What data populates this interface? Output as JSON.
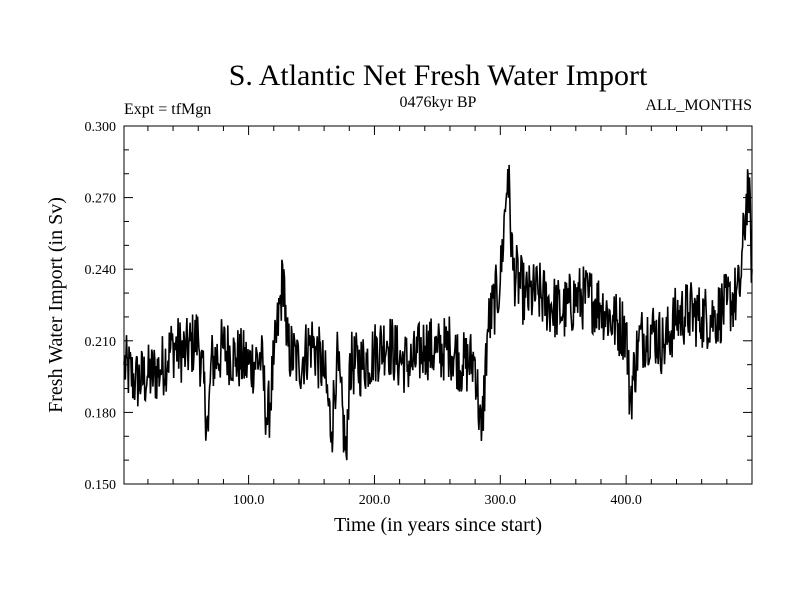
{
  "chart_data": {
    "type": "line",
    "title": "S. Atlantic Net Fresh Water Import",
    "subtitle_left": "Expt = tfMgn",
    "subtitle_center": "0476kyr BP",
    "subtitle_right": "ALL_MONTHS",
    "xlabel": "Time (in years since start)",
    "ylabel": "Fresh Water Import (in Sv)",
    "xlim": [
      1,
      500
    ],
    "ylim": [
      0.15,
      0.3
    ],
    "x_ticks": [
      100,
      200,
      300,
      400
    ],
    "x_tick_labels": [
      "100.0",
      "200.0",
      "300.0",
      "400.0"
    ],
    "y_ticks": [
      0.15,
      0.18,
      0.21,
      0.24,
      0.27,
      0.3
    ],
    "y_tick_labels": [
      "0.150",
      "0.180",
      "0.210",
      "0.240",
      "0.270",
      "0.300"
    ],
    "line_color": "#000000",
    "grid": false,
    "series": [
      {
        "x": [
          1,
          10,
          20,
          30,
          40,
          50,
          60,
          68,
          70,
          80,
          90,
          100,
          110,
          115,
          120,
          128,
          130,
          140,
          150,
          160,
          166,
          170,
          178,
          180,
          190,
          200,
          210,
          220,
          230,
          240,
          250,
          260,
          270,
          280,
          285,
          290,
          300,
          306,
          310,
          320,
          330,
          340,
          350,
          360,
          370,
          380,
          390,
          400,
          403,
          410,
          420,
          430,
          440,
          450,
          460,
          470,
          480,
          490,
          497,
          500
        ],
        "values": [
          0.2,
          0.193,
          0.195,
          0.198,
          0.208,
          0.205,
          0.212,
          0.172,
          0.2,
          0.207,
          0.203,
          0.2,
          0.203,
          0.175,
          0.2,
          0.24,
          0.208,
          0.2,
          0.21,
          0.197,
          0.172,
          0.203,
          0.16,
          0.2,
          0.2,
          0.205,
          0.21,
          0.202,
          0.2,
          0.208,
          0.205,
          0.208,
          0.2,
          0.202,
          0.168,
          0.215,
          0.235,
          0.282,
          0.24,
          0.228,
          0.23,
          0.225,
          0.222,
          0.228,
          0.228,
          0.225,
          0.218,
          0.215,
          0.185,
          0.21,
          0.215,
          0.208,
          0.22,
          0.222,
          0.22,
          0.22,
          0.225,
          0.23,
          0.278,
          0.24
        ]
      }
    ]
  }
}
